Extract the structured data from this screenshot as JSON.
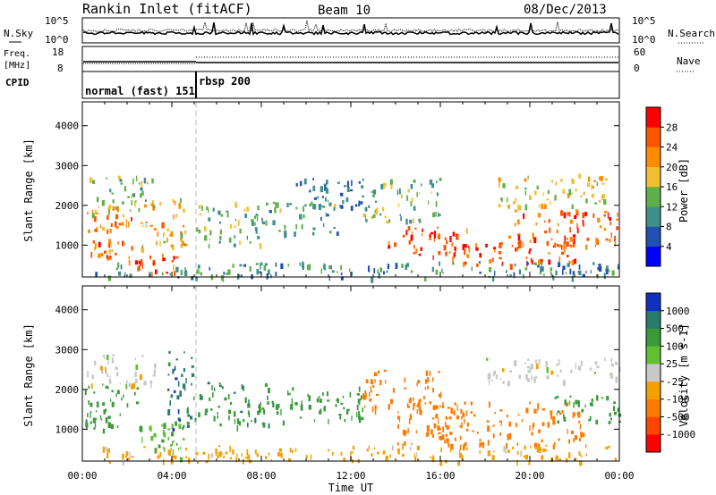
{
  "header": {
    "title": "Rankin Inlet (fitACF)",
    "beam": "Beam 10",
    "date": "08/Dec/2013"
  },
  "params": {
    "nsky_label": "N.Sky",
    "nsearch_label": "N.Search",
    "freq_label_1": "Freq.",
    "freq_label_2": "[MHz]",
    "nave_label": "Nave",
    "cpid_label": "CPID",
    "noise_ticks": [
      "10^5",
      "10^0"
    ],
    "freq_ticks": [
      "18",
      "8"
    ],
    "nave_ticks": [
      "60",
      "0"
    ],
    "cpid_segments": [
      {
        "label": "normal (fast) 151",
        "start_hour": 0,
        "end_hour": 5.05
      },
      {
        "label": "rbsp 200",
        "start_hour": 5.05,
        "end_hour": 24
      }
    ]
  },
  "chart_data": [
    {
      "type": "heatmap",
      "title": "",
      "xlabel": "Time UT",
      "ylabel": "Slant Range [km]",
      "xlim_hours": [
        0,
        24
      ],
      "ylim": [
        200,
        4600
      ],
      "x_ticks": [
        "00:00",
        "04:00",
        "08:00",
        "12:00",
        "16:00",
        "20:00",
        "00:00"
      ],
      "y_ticks": [
        1000,
        2000,
        3000,
        4000
      ],
      "colorbar": {
        "label": "Power [dB]",
        "ticks": [
          "28",
          "24",
          "20",
          "16",
          "12",
          "8",
          "4"
        ],
        "colors": [
          "#0000ff",
          "#2050b0",
          "#3f8f8a",
          "#5fb04a",
          "#f0c030",
          "#ff8c00",
          "#ff5500",
          "#ff0000"
        ]
      },
      "regions": [
        {
          "t0": 0.0,
          "t1": 2.2,
          "r0": 700,
          "r1": 2000,
          "value": 24
        },
        {
          "t0": 0.3,
          "t1": 3.2,
          "r0": 1800,
          "r1": 2800,
          "value": 16
        },
        {
          "t0": 2.0,
          "t1": 4.6,
          "r0": 250,
          "r1": 800,
          "value": 26
        },
        {
          "t0": 2.6,
          "t1": 4.6,
          "r0": 900,
          "r1": 2200,
          "value": 20
        },
        {
          "t0": 5.0,
          "t1": 8.0,
          "r0": 1000,
          "r1": 2100,
          "value": 14
        },
        {
          "t0": 8.0,
          "t1": 11.5,
          "r0": 1300,
          "r1": 2100,
          "value": 12
        },
        {
          "t0": 9.5,
          "t1": 12.5,
          "r0": 1900,
          "r1": 2700,
          "value": 8
        },
        {
          "t0": 12.5,
          "t1": 16.0,
          "r0": 1600,
          "r1": 2700,
          "value": 14
        },
        {
          "t0": 13.6,
          "t1": 17.2,
          "r0": 700,
          "r1": 1500,
          "value": 26
        },
        {
          "t0": 16.6,
          "t1": 22.0,
          "r0": 500,
          "r1": 1100,
          "value": 27
        },
        {
          "t0": 19.0,
          "t1": 24.0,
          "r0": 1000,
          "r1": 1900,
          "value": 25
        },
        {
          "t0": 18.5,
          "t1": 23.5,
          "r0": 2000,
          "r1": 2800,
          "value": 18
        },
        {
          "t0": 0.5,
          "t1": 24.0,
          "r0": 200,
          "r1": 600,
          "value": 10
        }
      ]
    },
    {
      "type": "heatmap",
      "title": "",
      "xlabel": "Time UT",
      "ylabel": "Slant Range [km]",
      "xlim_hours": [
        0,
        24
      ],
      "ylim": [
        200,
        4600
      ],
      "x_ticks": [
        "00:00",
        "04:00",
        "08:00",
        "12:00",
        "16:00",
        "20:00",
        "00:00"
      ],
      "y_ticks": [
        1000,
        2000,
        3000,
        4000
      ],
      "colorbar": {
        "label": "Velocity [m s-1]",
        "ticks": [
          "1000",
          "500",
          "100",
          "25",
          "-25",
          "-100",
          "-500",
          "-1000"
        ],
        "colors": [
          "#ff0000",
          "#ff4500",
          "#ff7a00",
          "#f5a000",
          "#c8c8c8",
          "#60c030",
          "#3a9a3a",
          "#2a7a6a",
          "#1030c0"
        ]
      },
      "regions": [
        {
          "t0": 0.0,
          "t1": 2.6,
          "r0": 1000,
          "r1": 2100,
          "value": 300
        },
        {
          "t0": 0.2,
          "t1": 3.3,
          "r0": 2100,
          "r1": 2900,
          "value": 0
        },
        {
          "t0": 2.5,
          "t1": 4.6,
          "r0": 300,
          "r1": 1200,
          "value": 80
        },
        {
          "t0": 3.8,
          "t1": 5.0,
          "r0": 900,
          "r1": 3000,
          "value": 800
        },
        {
          "t0": 5.0,
          "t1": 8.5,
          "r0": 1100,
          "r1": 2200,
          "value": 400
        },
        {
          "t0": 8.5,
          "t1": 12.5,
          "r0": 1200,
          "r1": 2100,
          "value": 200
        },
        {
          "t0": 12.5,
          "t1": 16.2,
          "r0": 1500,
          "r1": 2500,
          "value": -200
        },
        {
          "t0": 14.0,
          "t1": 22.5,
          "r0": 600,
          "r1": 1700,
          "value": -250
        },
        {
          "t0": 18.0,
          "t1": 24.0,
          "r0": 2200,
          "r1": 2800,
          "value": 0
        },
        {
          "t0": 21.0,
          "t1": 24.0,
          "r0": 1200,
          "r1": 1900,
          "value": 150
        },
        {
          "t0": 0.5,
          "t1": 24.0,
          "r0": 200,
          "r1": 600,
          "value": -50
        }
      ]
    }
  ]
}
